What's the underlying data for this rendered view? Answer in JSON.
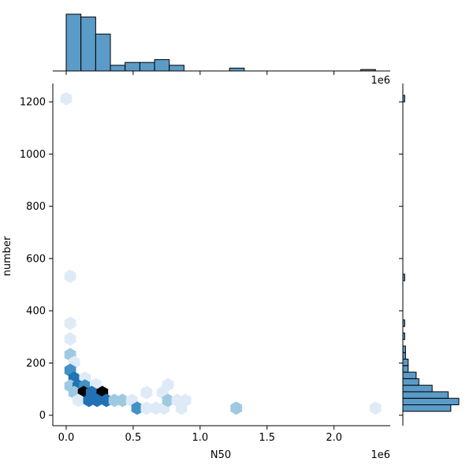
{
  "chart_data": {
    "type": "hexbin-joint",
    "xlabel": "N50",
    "ylabel": "number",
    "x_multiplier_label": "1e6",
    "top_hist_multiplier_label": "1e6",
    "xlim": [
      -0.1,
      2.42
    ],
    "ylim": [
      -40,
      1270
    ],
    "x_ticks": [
      0.0,
      0.5,
      1.0,
      1.5,
      2.0
    ],
    "x_tick_labels": [
      "0.0",
      "0.5",
      "1.0",
      "1.5",
      "2.0"
    ],
    "y_ticks": [
      0,
      200,
      400,
      600,
      800,
      1000,
      1200
    ],
    "y_tick_labels": [
      "0",
      "200",
      "400",
      "600",
      "800",
      "1000",
      "1200"
    ],
    "hexbins": [
      {
        "x": 0.0,
        "y": 1212,
        "count": 1
      },
      {
        "x": 0.03,
        "y": 532,
        "count": 1
      },
      {
        "x": 0.03,
        "y": 352,
        "count": 1
      },
      {
        "x": 0.03,
        "y": 292,
        "count": 1
      },
      {
        "x": 0.03,
        "y": 232,
        "count": 2
      },
      {
        "x": 0.06,
        "y": 202,
        "count": 1
      },
      {
        "x": 0.03,
        "y": 172,
        "count": 3
      },
      {
        "x": 0.06,
        "y": 142,
        "count": 5
      },
      {
        "x": 0.14,
        "y": 142,
        "count": 1
      },
      {
        "x": 0.03,
        "y": 112,
        "count": 2
      },
      {
        "x": 0.09,
        "y": 112,
        "count": 4
      },
      {
        "x": 0.14,
        "y": 112,
        "count": 3
      },
      {
        "x": 0.22,
        "y": 117,
        "count": 1
      },
      {
        "x": 0.06,
        "y": 87,
        "count": 2
      },
      {
        "x": 0.13,
        "y": 87,
        "count": 7
      },
      {
        "x": 0.19,
        "y": 87,
        "count": 4
      },
      {
        "x": 0.27,
        "y": 87,
        "count": 7
      },
      {
        "x": 0.09,
        "y": 57,
        "count": 1
      },
      {
        "x": 0.17,
        "y": 57,
        "count": 5
      },
      {
        "x": 0.23,
        "y": 57,
        "count": 4
      },
      {
        "x": 0.3,
        "y": 57,
        "count": 4
      },
      {
        "x": 0.36,
        "y": 57,
        "count": 2
      },
      {
        "x": 0.42,
        "y": 57,
        "count": 2
      },
      {
        "x": 0.49,
        "y": 57,
        "count": 1
      },
      {
        "x": 0.53,
        "y": 27,
        "count": 3
      },
      {
        "x": 0.6,
        "y": 27,
        "count": 1
      },
      {
        "x": 0.6,
        "y": 87,
        "count": 1
      },
      {
        "x": 0.67,
        "y": 27,
        "count": 1
      },
      {
        "x": 0.73,
        "y": 27,
        "count": 1
      },
      {
        "x": 0.72,
        "y": 87,
        "count": 1
      },
      {
        "x": 0.76,
        "y": 57,
        "count": 2
      },
      {
        "x": 0.76,
        "y": 117,
        "count": 1
      },
      {
        "x": 0.83,
        "y": 57,
        "count": 1
      },
      {
        "x": 0.89,
        "y": 57,
        "count": 1
      },
      {
        "x": 0.86,
        "y": 27,
        "count": 1
      },
      {
        "x": 1.27,
        "y": 27,
        "count": 2
      },
      {
        "x": 2.31,
        "y": 27,
        "count": 1
      }
    ],
    "x_histogram": [
      {
        "x0": 0.0,
        "x1": 0.11,
        "count": 20
      },
      {
        "x0": 0.11,
        "x1": 0.22,
        "count": 19
      },
      {
        "x0": 0.22,
        "x1": 0.33,
        "count": 13
      },
      {
        "x0": 0.33,
        "x1": 0.44,
        "count": 2
      },
      {
        "x0": 0.44,
        "x1": 0.55,
        "count": 3
      },
      {
        "x0": 0.55,
        "x1": 0.66,
        "count": 3
      },
      {
        "x0": 0.66,
        "x1": 0.77,
        "count": 4
      },
      {
        "x0": 0.77,
        "x1": 0.88,
        "count": 2
      },
      {
        "x0": 1.22,
        "x1": 1.33,
        "count": 1
      },
      {
        "x0": 2.2,
        "x1": 2.31,
        "count": 0.5
      }
    ],
    "y_histogram": [
      {
        "y0": 15,
        "y1": 40,
        "count": 18
      },
      {
        "y0": 40,
        "y1": 65,
        "count": 21
      },
      {
        "y0": 65,
        "y1": 90,
        "count": 17
      },
      {
        "y0": 90,
        "y1": 115,
        "count": 11
      },
      {
        "y0": 115,
        "y1": 140,
        "count": 6
      },
      {
        "y0": 140,
        "y1": 165,
        "count": 5
      },
      {
        "y0": 165,
        "y1": 190,
        "count": 2
      },
      {
        "y0": 190,
        "y1": 215,
        "count": 2
      },
      {
        "y0": 215,
        "y1": 240,
        "count": 1
      },
      {
        "y0": 240,
        "y1": 265,
        "count": 1
      },
      {
        "y0": 290,
        "y1": 315,
        "count": 0.7
      },
      {
        "y0": 340,
        "y1": 365,
        "count": 0.7
      },
      {
        "y0": 515,
        "y1": 540,
        "count": 0.7
      },
      {
        "y0": 1200,
        "y1": 1225,
        "count": 0.7
      }
    ],
    "colors": {
      "hex_scale": [
        "#deebf7",
        "#9ecae1",
        "#4292c6",
        "#2171b5",
        "#08306b",
        "#000000"
      ],
      "hist_fill": "#5b9bc8",
      "hist_edge": "#000000"
    }
  }
}
